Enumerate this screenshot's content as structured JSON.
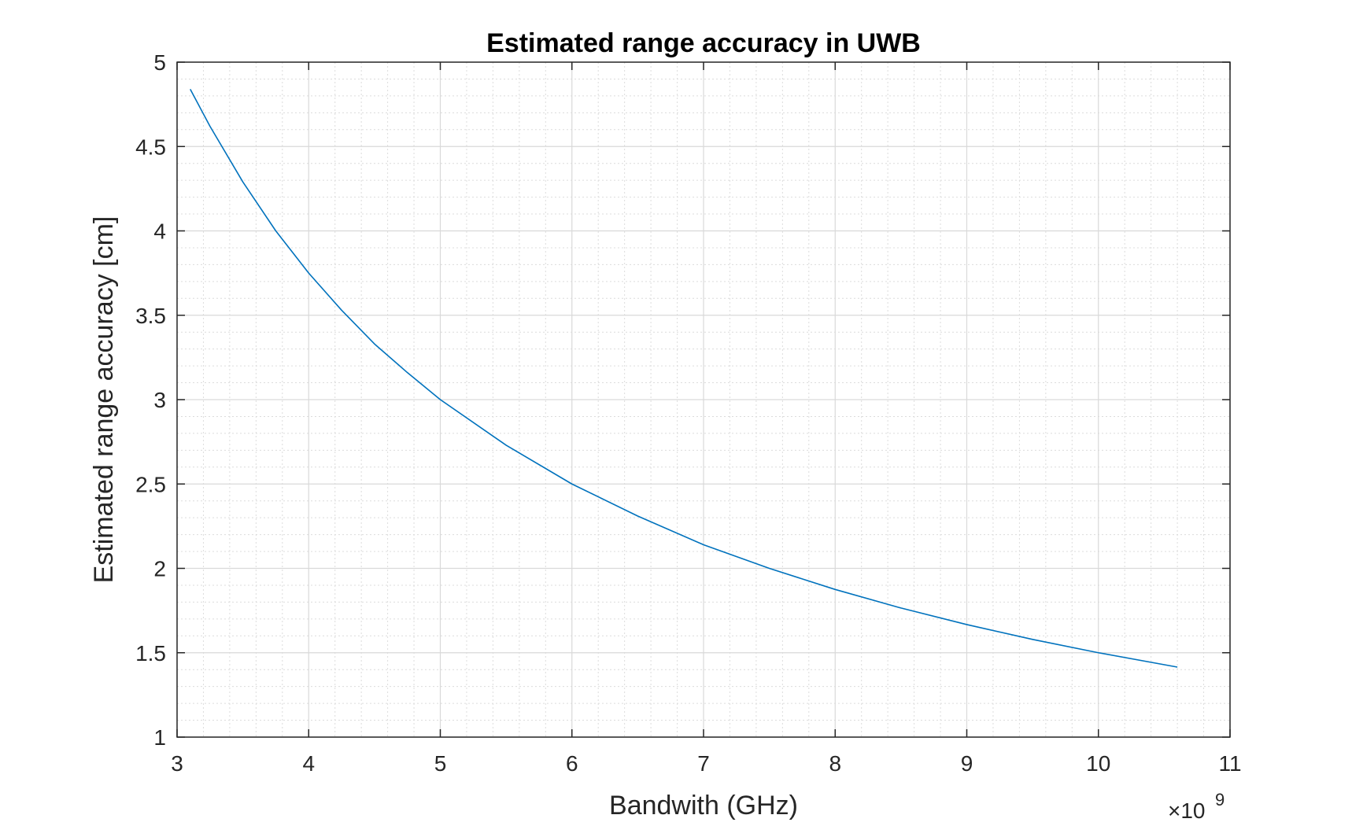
{
  "chart_data": {
    "type": "line",
    "title": "Estimated range accuracy in UWB",
    "xlabel": "Bandwith (GHz)",
    "ylabel": "Estimated range accuracy [cm]",
    "x_exponent_multiplier": "×10",
    "x_exponent_power": "9",
    "xlim": [
      3,
      11
    ],
    "ylim": [
      1,
      5
    ],
    "xticks": [
      3,
      4,
      5,
      6,
      7,
      8,
      9,
      10,
      11
    ],
    "xtick_labels": [
      "3",
      "4",
      "5",
      "6",
      "7",
      "8",
      "9",
      "10",
      "11"
    ],
    "yticks": [
      1,
      1.5,
      2,
      2.5,
      3,
      3.5,
      4,
      4.5,
      5
    ],
    "ytick_labels": [
      "1",
      "1.5",
      "2",
      "2.5",
      "3",
      "3.5",
      "4",
      "4.5",
      "5"
    ],
    "grid": true,
    "minor_grid": true,
    "series": [
      {
        "name": "Estimated range accuracy",
        "color": "#0072BD",
        "x": [
          3.1,
          3.25,
          3.5,
          3.75,
          4.0,
          4.25,
          4.5,
          4.75,
          5.0,
          5.5,
          6.0,
          6.5,
          7.0,
          7.5,
          8.0,
          8.5,
          9.0,
          9.5,
          10.0,
          10.6
        ],
        "y": [
          4.84,
          4.62,
          4.29,
          4.0,
          3.75,
          3.53,
          3.33,
          3.16,
          3.0,
          2.73,
          2.5,
          2.31,
          2.14,
          2.0,
          1.875,
          1.765,
          1.667,
          1.579,
          1.5,
          1.415
        ]
      }
    ]
  }
}
